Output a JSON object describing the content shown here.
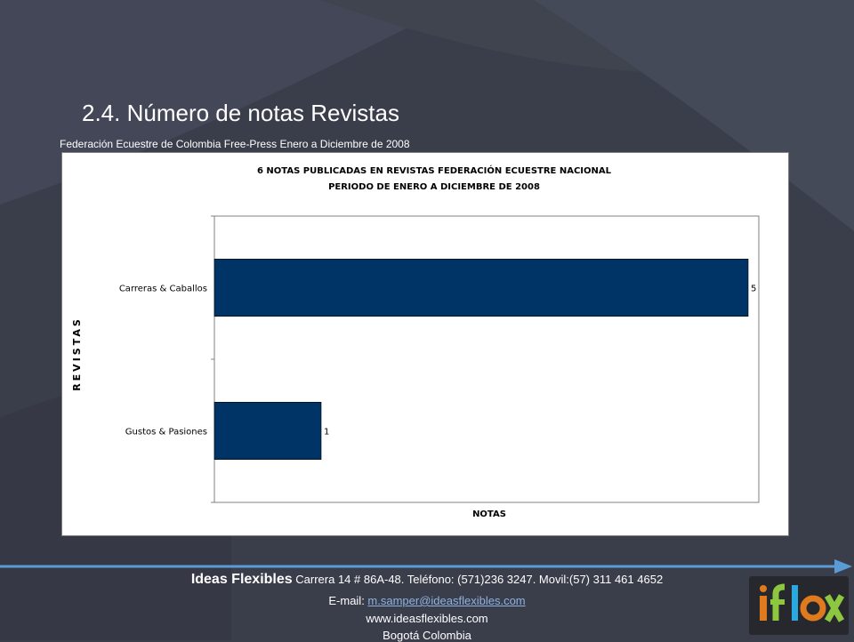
{
  "slide": {
    "title": "2.4. Número de notas Revistas",
    "subtitle": "Federación Ecuestre de Colombia  Free-Press Enero a Diciembre de 2008"
  },
  "chart_data": {
    "type": "bar",
    "orientation": "horizontal",
    "title_line1": "6  NOTAS PUBLICADAS EN REVISTAS FEDERACIÓN ECUESTRE NACIONAL",
    "title_line2": "PERIODO DE ENERO A DICIEMBRE DE 2008",
    "xlabel": "NOTAS",
    "ylabel": "REVISTAS",
    "categories": [
      "Carreras & Caballos",
      "Gustos & Pasiones"
    ],
    "values": [
      5,
      1
    ],
    "data_labels": [
      "5",
      "1"
    ],
    "xlim": [
      0,
      5.1
    ],
    "bar_color": "#003366",
    "grid": false,
    "legend": "none"
  },
  "footer": {
    "company": "Ideas Flexibles",
    "address": " Carrera 14 # 86A-48. Teléfono: (571)236 3247. Movil:(57) 311 461 4652",
    "email_prefix": "E-mail: ",
    "email": "m.samper@ideasflexibles.com",
    "website": "www.ideasflexibles.com",
    "city": "Bogotá Colombia"
  },
  "colors": {
    "background": "#3a3e4b",
    "accent_arrow": "#5b9bd5"
  },
  "icons": {
    "logo": "iflex-logo",
    "arrow": "arrow-right-icon"
  }
}
